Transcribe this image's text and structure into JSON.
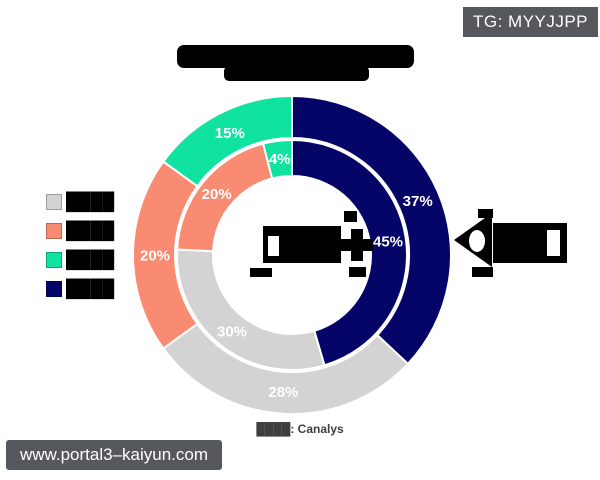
{
  "badge": {
    "label": "TG: MYYJJPP"
  },
  "watermark": {
    "label": "www.portal3–kaiyun.com"
  },
  "source_note": {
    "label": "████: Canalys"
  },
  "title": {
    "redacted": true,
    "lines": 2
  },
  "chart_data": {
    "type": "donut",
    "direction": "clockwise",
    "start_angle_deg": 0,
    "center": {
      "x": 292,
      "y": 255
    },
    "separator_color": "#ffffff",
    "label_color": "#ffffff",
    "series_colors": {
      "gray": "#d3d3d3",
      "salmon": "#f98b72",
      "green": "#10e2a0",
      "navy": "#050568"
    },
    "rings": [
      {
        "name": "outer",
        "outer_radius": 159,
        "inner_radius": 117,
        "label_radius": 137,
        "segments": [
          {
            "series": "navy",
            "label": "37%",
            "value": 37
          },
          {
            "series": "gray",
            "label": "28%",
            "value": 28
          },
          {
            "series": "salmon",
            "label": "20%",
            "value": 20
          },
          {
            "series": "green",
            "label": "15%",
            "value": 15
          }
        ]
      },
      {
        "name": "inner",
        "outer_radius": 115,
        "inner_radius": 79,
        "label_radius": 97,
        "segments": [
          {
            "series": "navy",
            "label": "45%",
            "value": 45
          },
          {
            "series": "gray",
            "label": "30%",
            "value": 30
          },
          {
            "series": "salmon",
            "label": "20%",
            "value": 20
          },
          {
            "series": "green",
            "label": "4%",
            "value": 4
          }
        ]
      }
    ],
    "legend": {
      "position": "left",
      "items": [
        {
          "series": "gray",
          "color": "#d3d3d3",
          "label": "████"
        },
        {
          "series": "salmon",
          "color": "#f98b72",
          "label": "████"
        },
        {
          "series": "green",
          "color": "#10e2a0",
          "label": "████"
        },
        {
          "series": "navy",
          "color": "#050568",
          "label": "████"
        }
      ]
    }
  }
}
